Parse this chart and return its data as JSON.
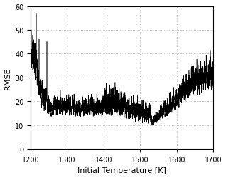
{
  "xlabel": "Initial Temperature [K]",
  "ylabel": "RMSE",
  "xlim": [
    1200,
    1700
  ],
  "ylim": [
    0,
    60
  ],
  "xticks": [
    1200,
    1300,
    1400,
    1500,
    1600,
    1700
  ],
  "yticks": [
    0,
    10,
    20,
    30,
    40,
    50,
    60
  ],
  "grid_color": "#aaaaaa",
  "line_color": "#000000",
  "background_color": "#ffffff",
  "figsize": [
    3.18,
    2.51
  ],
  "dpi": 100
}
